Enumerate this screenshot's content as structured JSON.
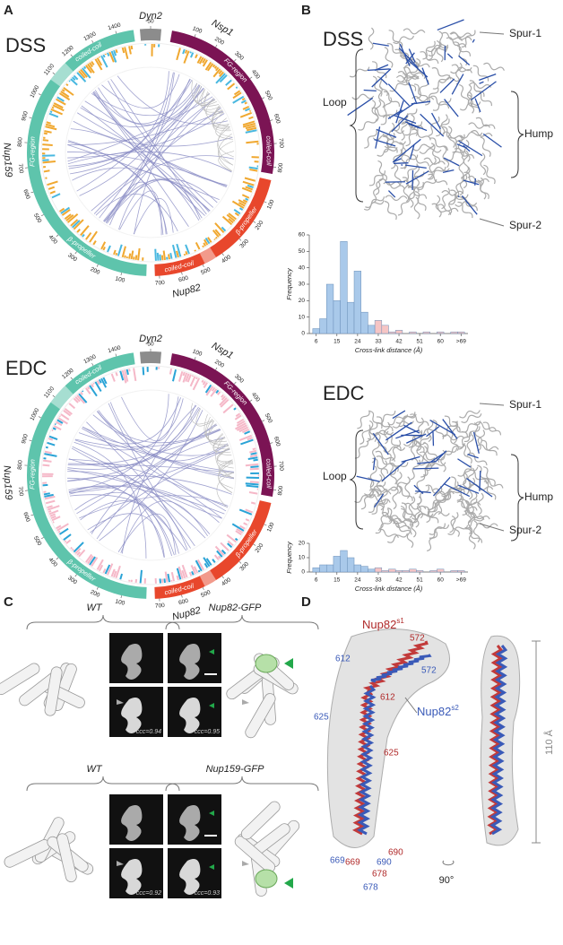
{
  "panel_a": {
    "label": "A",
    "plots": [
      {
        "title": "DSS",
        "track_colors": [
          "#f0a830",
          "#49b8e0"
        ],
        "proteins": [
          {
            "name": "Dyn2",
            "color": "#8c8c8c",
            "ticks": [
              50
            ],
            "domains": []
          },
          {
            "name": "Nsp1",
            "color": "#7b1454",
            "ticks": [
              100,
              200,
              300,
              400,
              500,
              600,
              700,
              800
            ],
            "domains": [
              "FG-region",
              "coiled-coil"
            ]
          },
          {
            "name": "Nup82",
            "color": "#e8472c",
            "ticks": [
              100,
              200,
              300,
              400,
              500,
              600,
              700
            ],
            "domains": [
              "β-propeller",
              "coiled-coil"
            ]
          },
          {
            "name": "Nup159",
            "color": "#5ec4ac",
            "ticks": [
              100,
              200,
              300,
              400,
              500,
              600,
              700,
              800,
              900,
              1000,
              1100,
              1200,
              1300,
              1400
            ],
            "domains": [
              "β-propeller",
              "FG-region",
              "coiled-coil"
            ]
          }
        ]
      },
      {
        "title": "EDC",
        "track_colors": [
          "#f5b8c8",
          "#2aa3d6"
        ],
        "proteins": [
          {
            "name": "Dyn2",
            "color": "#8c8c8c",
            "ticks": [
              50
            ],
            "domains": []
          },
          {
            "name": "Nsp1",
            "color": "#7b1454",
            "ticks": [
              100,
              200,
              300,
              400,
              500,
              600,
              700,
              800
            ],
            "domains": [
              "FG-region",
              "coiled-coil"
            ]
          },
          {
            "name": "Nup82",
            "color": "#e8472c",
            "ticks": [
              100,
              200,
              300,
              400,
              500,
              600,
              700
            ],
            "domains": [
              "β-propeller",
              "coiled-coil"
            ]
          },
          {
            "name": "Nup159",
            "color": "#5ec4ac",
            "ticks": [
              100,
              200,
              300,
              400,
              500,
              600,
              700,
              800,
              900,
              1000,
              1100,
              1200,
              1300,
              1400
            ],
            "domains": [
              "β-propeller",
              "FG-region",
              "coiled-coil"
            ]
          }
        ]
      }
    ]
  },
  "panel_b": {
    "label": "B",
    "structures": [
      {
        "title": "DSS",
        "labels": [
          "Spur-1",
          "Loop",
          "Hump",
          "Spur-2"
        ],
        "histogram": {
          "type": "histogram",
          "bins": [
            4.5,
            7.5,
            10.5,
            13.5,
            16.5,
            19.5,
            22.5,
            25.5,
            28.5,
            31.5,
            34.5,
            37.5,
            40.5,
            43.5,
            46.5,
            49.5,
            52.5,
            55.5,
            58.5,
            61.5,
            64.5,
            67.5,
            70.5
          ],
          "values": [
            3,
            9,
            30,
            20,
            56,
            19,
            38,
            13,
            5,
            8,
            5,
            1,
            2,
            0,
            1,
            0,
            1,
            0,
            1,
            0,
            1,
            1
          ],
          "colors": [
            "#a9c9ea",
            "#a9c9ea",
            "#a9c9ea",
            "#a9c9ea",
            "#a9c9ea",
            "#a9c9ea",
            "#a9c9ea",
            "#a9c9ea",
            "#a9c9ea",
            "#f6c5c5",
            "#f6c5c5",
            "#f6c5c5",
            "#f6c5c5",
            "#f6c5c5",
            "#f6c5c5",
            "#f6c5c5",
            "#f6c5c5",
            "#f6c5c5",
            "#f6c5c5",
            "#f6c5c5",
            "#f6c5c5",
            "#f6c5c5"
          ],
          "xlim": [
            3,
            72
          ],
          "ylim": [
            0,
            60
          ],
          "xticks": [
            6,
            15,
            24,
            33,
            42,
            51,
            60,
            {
              "value": 69,
              "label": ">69"
            }
          ],
          "yticks": [
            0,
            10,
            20,
            30,
            40,
            50,
            60
          ],
          "ylabel": "Frequency",
          "xlabel": "Cross-link distance (Å)"
        }
      },
      {
        "title": "EDC",
        "labels": [
          "Spur-1",
          "Loop",
          "Hump",
          "Spur-2"
        ],
        "histogram": {
          "type": "histogram",
          "bins": [
            4.5,
            7.5,
            10.5,
            13.5,
            16.5,
            19.5,
            22.5,
            25.5,
            28.5,
            31.5,
            34.5,
            37.5,
            40.5,
            43.5,
            46.5,
            49.5,
            52.5,
            55.5,
            58.5,
            61.5,
            64.5,
            67.5,
            70.5
          ],
          "values": [
            3,
            5,
            5,
            11,
            15,
            10,
            5,
            4,
            2,
            3,
            1,
            2,
            1,
            1,
            2,
            1,
            0,
            1,
            2,
            0,
            1,
            1
          ],
          "colors": [
            "#a9c9ea",
            "#a9c9ea",
            "#a9c9ea",
            "#a9c9ea",
            "#a9c9ea",
            "#a9c9ea",
            "#a9c9ea",
            "#a9c9ea",
            "#a9c9ea",
            "#f6c5c5",
            "#f6c5c5",
            "#f6c5c5",
            "#f6c5c5",
            "#f6c5c5",
            "#f6c5c5",
            "#f6c5c5",
            "#f6c5c5",
            "#f6c5c5",
            "#f6c5c5",
            "#f6c5c5",
            "#f6c5c5",
            "#f6c5c5"
          ],
          "xlim": [
            3,
            72
          ],
          "ylim": [
            0,
            20
          ],
          "xticks": [
            6,
            15,
            24,
            33,
            42,
            51,
            60,
            {
              "value": 69,
              "label": ">69"
            }
          ],
          "yticks": [
            0,
            10,
            20
          ],
          "ylabel": "Frequency",
          "xlabel": "Cross-link distance (Å)"
        }
      }
    ]
  },
  "panel_c": {
    "label": "C",
    "rows": [
      {
        "left": "WT",
        "right": "Nup82-GFP",
        "ccc_left": "ccc=0.94",
        "ccc_right": "ccc=0.95"
      },
      {
        "left": "WT",
        "right": "Nup159-GFP",
        "ccc_left": "ccc=0.92",
        "ccc_right": "ccc=0.93"
      }
    ]
  },
  "panel_d": {
    "label": "D",
    "chain_s1": {
      "name": "Nup82",
      "sup": "s1"
    },
    "chain_s2": {
      "name": "Nup82",
      "sup": "s2"
    },
    "residues_s1": [
      572,
      612,
      625,
      690,
      669,
      678
    ],
    "residues_s2": [
      612,
      572,
      625,
      669,
      690,
      678
    ],
    "rotation": "90°",
    "scale": "110 Å"
  }
}
